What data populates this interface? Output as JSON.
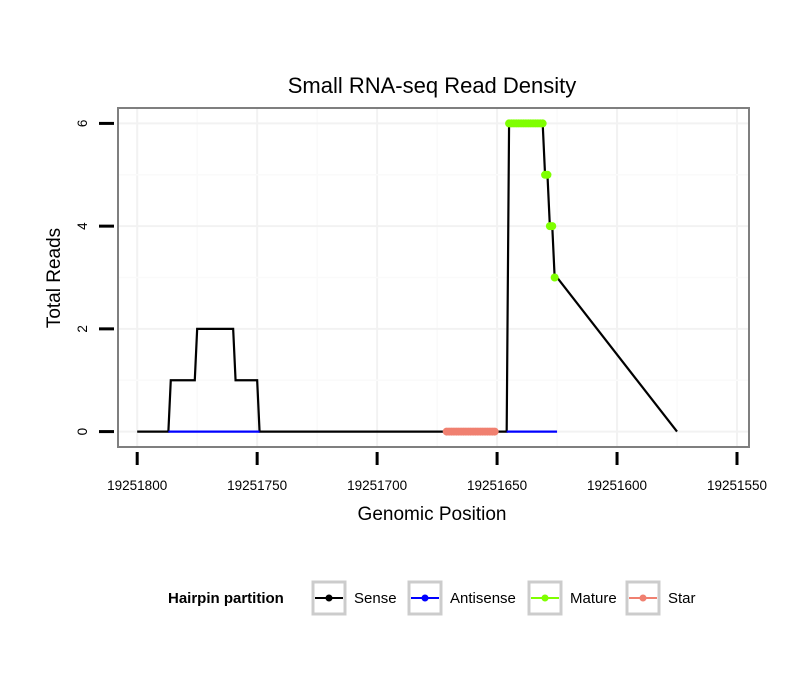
{
  "chart_data": {
    "type": "line",
    "title": "Small RNA-seq Read Density",
    "xlabel": "Genomic Position",
    "ylabel": "Total Reads",
    "xlim": [
      19251808,
      19251545
    ],
    "ylim": [
      -0.3,
      6.3
    ],
    "x_reversed": true,
    "x_ticks": [
      19251800,
      19251750,
      19251700,
      19251650,
      19251600,
      19251550
    ],
    "x_tick_labels": [
      "19251800",
      "19251750",
      "19251700",
      "19251650",
      "19251600",
      "19251550"
    ],
    "y_ticks": [
      0,
      2,
      4,
      6
    ],
    "y_tick_labels": [
      "0",
      "2",
      "4",
      "6"
    ],
    "grid": true,
    "legend": {
      "title": "Hairpin partition",
      "position": "bottom",
      "entries": [
        "Sense",
        "Antisense",
        "Mature",
        "Star"
      ]
    },
    "colors": {
      "Sense": "#000000",
      "Antisense": "#0000ff",
      "Mature": "#7fff00",
      "Star": "#f08070"
    },
    "series": [
      {
        "name": "Sense",
        "style": "line",
        "x": [
          19251800,
          19251787,
          19251786,
          19251776,
          19251775,
          19251760,
          19251759,
          19251750,
          19251749,
          19251646,
          19251645,
          19251631,
          19251630,
          19251629,
          19251628,
          19251627,
          19251626,
          19251625,
          19251575
        ],
        "y": [
          0,
          0,
          1,
          1,
          2,
          2,
          1,
          1,
          0,
          0,
          6,
          6,
          5,
          5,
          4,
          4,
          3,
          3,
          0
        ]
      },
      {
        "name": "Antisense",
        "style": "line",
        "x": [
          19251787,
          19251749,
          19251646,
          19251625
        ],
        "y": [
          0,
          0,
          0,
          0
        ],
        "segments": [
          [
            0,
            1
          ],
          [
            2,
            3
          ]
        ]
      },
      {
        "name": "Mature",
        "style": "points",
        "x": [
          19251645,
          19251644,
          19251643,
          19251642,
          19251641,
          19251640,
          19251639,
          19251638,
          19251637,
          19251636,
          19251635,
          19251634,
          19251633,
          19251632,
          19251631,
          19251630,
          19251629,
          19251628,
          19251627,
          19251626
        ],
        "y": [
          6,
          6,
          6,
          6,
          6,
          6,
          6,
          6,
          6,
          6,
          6,
          6,
          6,
          6,
          6,
          5,
          5,
          4,
          4,
          3
        ]
      },
      {
        "name": "Star",
        "style": "points",
        "x": [
          19251671,
          19251670,
          19251669,
          19251668,
          19251667,
          19251666,
          19251665,
          19251664,
          19251663,
          19251662,
          19251661,
          19251660,
          19251659,
          19251658,
          19251657,
          19251656,
          19251655,
          19251654,
          19251653,
          19251652,
          19251651
        ],
        "y": [
          0,
          0,
          0,
          0,
          0,
          0,
          0,
          0,
          0,
          0,
          0,
          0,
          0,
          0,
          0,
          0,
          0,
          0,
          0,
          0,
          0
        ]
      }
    ]
  }
}
